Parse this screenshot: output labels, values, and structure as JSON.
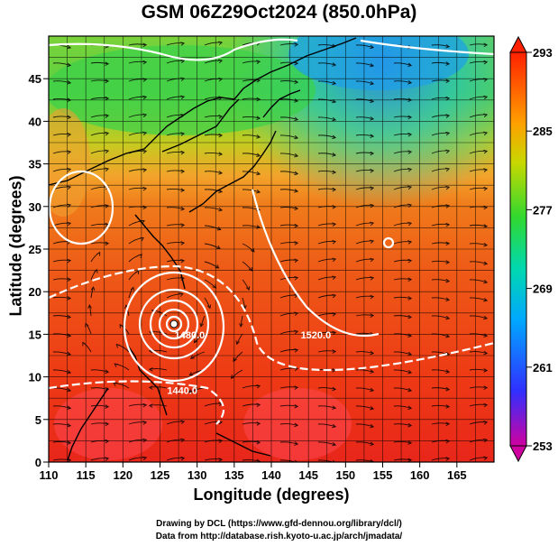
{
  "title": "GSM 06Z29Oct2024 (850.0hPa)",
  "xlabel": "Longitude (degrees)",
  "ylabel": "Latitude  (degrees)",
  "credits": [
    "Drawing by DCL (https://www.gfd-dennou.org/library/dcl/)",
    "Data from http://database.rish.kyoto-u.ac.jp/arch/jmadata/"
  ],
  "chart_data": {
    "type": "heatmap",
    "variable": "temperature with streamlines and height contours",
    "level": "850.0hPa",
    "xlim": [
      110,
      170
    ],
    "ylim": [
      0,
      50
    ],
    "xticks": [
      "110",
      "115",
      "120",
      "125",
      "130",
      "135",
      "140",
      "145",
      "150",
      "155",
      "160",
      "165"
    ],
    "yticks": [
      "0",
      "5",
      "10",
      "15",
      "20",
      "25",
      "30",
      "35",
      "40",
      "45"
    ],
    "colorbar": {
      "min": 253,
      "max": 293,
      "ticks": [
        "293",
        "285",
        "277",
        "269",
        "261",
        "253"
      ],
      "colors": [
        "#d00090",
        "#2020ff",
        "#00b4ff",
        "#00d070",
        "#70e020",
        "#f0b000",
        "#ff7000",
        "#ff2000"
      ]
    },
    "contour_labels": [
      {
        "text": "1520.0",
        "lon": 146,
        "lat": 14.5
      },
      {
        "text": "1480.0",
        "lon": 129,
        "lat": 14.5
      },
      {
        "text": "1440.0",
        "lon": 128,
        "lat": 8
      }
    ],
    "typhoon_center": {
      "lon": 126.5,
      "lat": 18
    }
  }
}
